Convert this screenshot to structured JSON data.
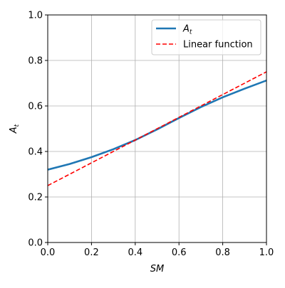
{
  "chart_data": {
    "type": "line",
    "title": "",
    "xlabel": "SM",
    "ylabel": "A_t",
    "xlim": [
      0.0,
      1.0
    ],
    "ylim": [
      0.0,
      1.0
    ],
    "xticks": [
      "0.0",
      "0.2",
      "0.4",
      "0.6",
      "0.8",
      "1.0"
    ],
    "yticks": [
      "0.0",
      "0.2",
      "0.4",
      "0.6",
      "0.8",
      "1.0"
    ],
    "grid": true,
    "legend_position": "top-right",
    "series": [
      {
        "name": "A_t",
        "style": "solid",
        "color": "#1f77b4",
        "x": [
          0.0,
          0.1,
          0.2,
          0.3,
          0.4,
          0.5,
          0.6,
          0.7,
          0.8,
          0.9,
          1.0
        ],
        "y": [
          0.32,
          0.345,
          0.375,
          0.41,
          0.45,
          0.497,
          0.547,
          0.595,
          0.638,
          0.676,
          0.712
        ]
      },
      {
        "name": "Linear function",
        "style": "dashed",
        "color": "#ff0000",
        "x": [
          0.0,
          1.0
        ],
        "y": [
          0.25,
          0.75
        ]
      }
    ]
  }
}
